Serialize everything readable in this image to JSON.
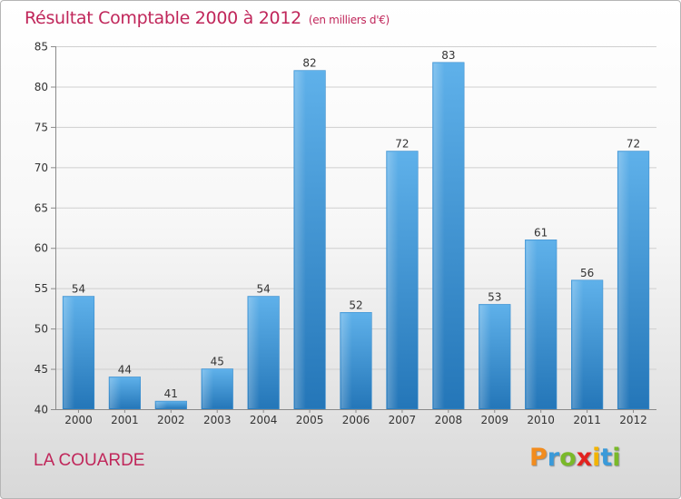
{
  "chart_data": {
    "type": "bar",
    "title": "Résultat Comptable 2000 à 2012",
    "subtitle": "(en milliers d'€)",
    "xlabel": "",
    "ylabel": "",
    "categories": [
      "2000",
      "2001",
      "2002",
      "2003",
      "2004",
      "2005",
      "2006",
      "2007",
      "2008",
      "2009",
      "2010",
      "2011",
      "2012"
    ],
    "values": [
      54,
      44,
      41,
      45,
      54,
      82,
      52,
      72,
      83,
      53,
      61,
      56,
      72
    ],
    "ylim": [
      40,
      85
    ],
    "yticks": [
      40,
      45,
      50,
      55,
      60,
      65,
      70,
      75,
      80,
      85
    ],
    "grid": true,
    "bar_color": "#2f8fd6"
  },
  "footer": {
    "place": "LA COUARDE",
    "brand": "Proxiti",
    "brand_colors": [
      "#f28c1e",
      "#3a9ad9",
      "#7ab929",
      "#e2221f",
      "#f2b400",
      "#3a9ad9",
      "#7ab929"
    ]
  }
}
